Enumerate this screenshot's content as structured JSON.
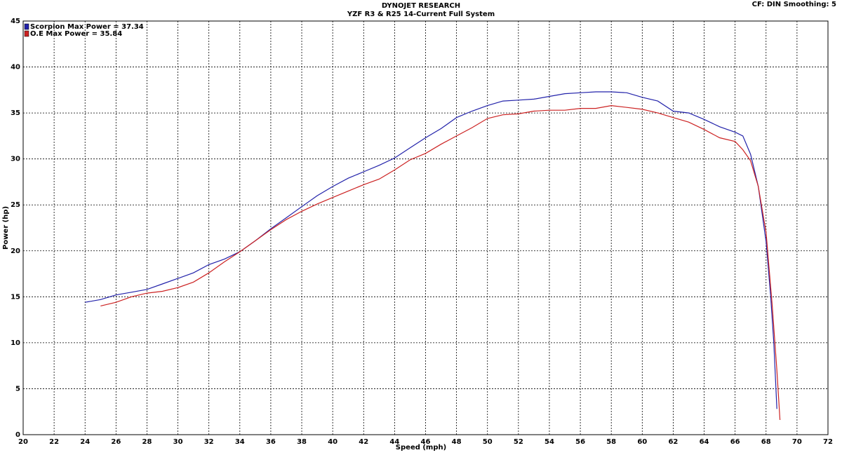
{
  "chart_data": {
    "type": "line",
    "title": "DYNOJET RESEARCH",
    "subtitle": "YZF R3 & R25 14-Current Full System",
    "corner_note": "CF: DIN  Smoothing: 5",
    "x_label": "Speed (mph)",
    "y_label": "Power (hp)",
    "xlim": [
      20,
      72
    ],
    "ylim": [
      0,
      45
    ],
    "xticks": [
      20,
      22,
      24,
      26,
      28,
      30,
      32,
      34,
      36,
      38,
      40,
      42,
      44,
      46,
      48,
      50,
      52,
      54,
      56,
      58,
      60,
      62,
      64,
      66,
      68,
      70,
      72
    ],
    "yticks": [
      0,
      5,
      10,
      15,
      20,
      25,
      30,
      35,
      40,
      45
    ],
    "grid": true,
    "legend": "top-left",
    "series": [
      {
        "name": "Scorpion Max Power = 37.34",
        "color": "#2222aa",
        "x": [
          24,
          25,
          26,
          27,
          28,
          29,
          30,
          31,
          32,
          33,
          34,
          35,
          36,
          37,
          38,
          39,
          40,
          41,
          42,
          43,
          44,
          45,
          46,
          47,
          48,
          49,
          50,
          51,
          52,
          53,
          54,
          55,
          56,
          57,
          58,
          59,
          60,
          61,
          62,
          63,
          64,
          65,
          66,
          66.5,
          67,
          67.5,
          68,
          68.3,
          68.5,
          68.7
        ],
        "values": [
          14.4,
          14.7,
          15.2,
          15.5,
          15.8,
          16.4,
          17.0,
          17.6,
          18.5,
          19.1,
          19.9,
          21.1,
          22.4,
          23.6,
          24.8,
          26.0,
          27.0,
          27.9,
          28.6,
          29.3,
          30.1,
          31.2,
          32.3,
          33.3,
          34.5,
          35.2,
          35.8,
          36.3,
          36.4,
          36.5,
          36.8,
          37.1,
          37.2,
          37.3,
          37.3,
          37.2,
          36.7,
          36.3,
          35.2,
          35.0,
          34.3,
          33.5,
          32.9,
          32.5,
          30.5,
          27.0,
          21.0,
          15.0,
          10.0,
          2.8
        ]
      },
      {
        "name": "O.E Max Power = 35.84",
        "color": "#cc2222",
        "x": [
          25,
          26,
          27,
          28,
          29,
          30,
          31,
          32,
          33,
          34,
          35,
          36,
          37,
          38,
          39,
          40,
          41,
          42,
          43,
          44,
          45,
          46,
          47,
          48,
          49,
          50,
          51,
          52,
          53,
          54,
          55,
          56,
          57,
          58,
          59,
          60,
          61,
          62,
          63,
          64,
          65,
          66,
          66.5,
          67,
          67.5,
          68,
          68.4,
          68.7,
          68.9
        ],
        "values": [
          14.0,
          14.4,
          15.0,
          15.4,
          15.6,
          16.0,
          16.6,
          17.6,
          18.8,
          19.9,
          21.1,
          22.3,
          23.4,
          24.3,
          25.1,
          25.8,
          26.5,
          27.2,
          27.8,
          28.8,
          29.9,
          30.6,
          31.6,
          32.5,
          33.4,
          34.4,
          34.8,
          34.9,
          35.2,
          35.3,
          35.3,
          35.5,
          35.5,
          35.8,
          35.6,
          35.4,
          35.0,
          34.5,
          34.0,
          33.2,
          32.3,
          31.9,
          31.0,
          29.8,
          27.0,
          22.0,
          14.0,
          7.0,
          1.6
        ]
      }
    ]
  }
}
